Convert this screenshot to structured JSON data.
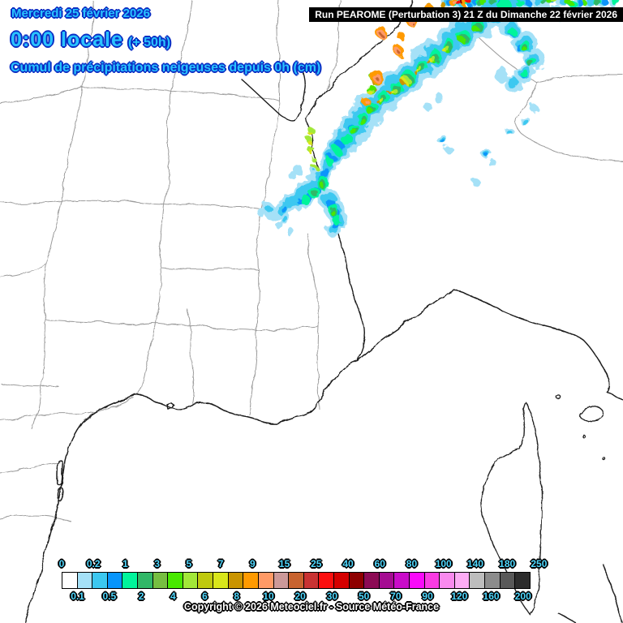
{
  "header": {
    "date": "Mercredi 25 février 2026",
    "time": "0:00 locale",
    "forecast_offset": "(+ 50h)",
    "subtitle": "Cumul de précipitations neigeuses depuis 0h (cm)"
  },
  "run_banner": {
    "text": "Run PEAROME (Perturbation 3) 21 Z du Dimanche 22 février 2026"
  },
  "footer": {
    "copyright": "Copyright © 2026 Meteociel.fr - Source Météo-France"
  },
  "colors": {
    "title_text": "#29c3ff",
    "title_outline": "#0a2ec4",
    "legend_label_text": "#4fd8ff",
    "banner_background": "#000000",
    "banner_text": "#ffffff",
    "sea_and_land": "#ffffff",
    "department_border": "#9b9b9b",
    "coastline": "#1f1f1f",
    "country_border": "#1a1a1a"
  },
  "legend": {
    "cells": [
      {
        "value": "0",
        "color": "#FFFFFF"
      },
      {
        "value": "0.1",
        "color": "#A5E1F7"
      },
      {
        "value": "0.2",
        "color": "#3CC8F0"
      },
      {
        "value": "0.5",
        "color": "#0795FB"
      },
      {
        "value": "1",
        "color": "#00F49B"
      },
      {
        "value": "2",
        "color": "#31B767"
      },
      {
        "value": "3",
        "color": "#76BE41"
      },
      {
        "value": "4",
        "color": "#48E800"
      },
      {
        "value": "5",
        "color": "#A2E838"
      },
      {
        "value": "6",
        "color": "#BFC90E"
      },
      {
        "value": "7",
        "color": "#D9E61A"
      },
      {
        "value": "8",
        "color": "#C99400"
      },
      {
        "value": "9",
        "color": "#FF9A00"
      },
      {
        "value": "10",
        "color": "#FF9A66"
      },
      {
        "value": "15",
        "color": "#CC9999"
      },
      {
        "value": "20",
        "color": "#C8632F"
      },
      {
        "value": "25",
        "color": "#C93333"
      },
      {
        "value": "30",
        "color": "#FB0F0F"
      },
      {
        "value": "40",
        "color": "#D50000"
      },
      {
        "value": "50",
        "color": "#8E0000"
      },
      {
        "value": "60",
        "color": "#8C0A55"
      },
      {
        "value": "70",
        "color": "#A50C92"
      },
      {
        "value": "80",
        "color": "#C90CC9"
      },
      {
        "value": "90",
        "color": "#FA0AFA"
      },
      {
        "value": "100",
        "color": "#FA3CE3"
      },
      {
        "value": "120",
        "color": "#F98AEE"
      },
      {
        "value": "140",
        "color": "#FCACF4"
      },
      {
        "value": "160",
        "color": "#BDBDBD"
      },
      {
        "value": "180",
        "color": "#8C8C8C"
      },
      {
        "value": "200",
        "color": "#595959"
      },
      {
        "value": "250",
        "color": "#2D2D2D"
      }
    ]
  }
}
